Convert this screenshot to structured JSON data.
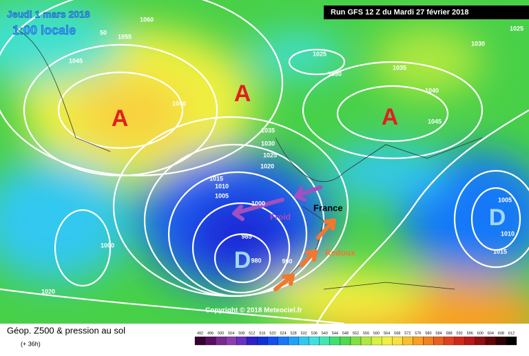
{
  "header": {
    "date": "Jeudi 1 mars 2018",
    "time": "1:00 locale",
    "run": "Run GFS 12 Z du Mardi 27 février 2018"
  },
  "isobars": [
    "1060",
    "50",
    "1055",
    "1045",
    "1040",
    "1025",
    "1030",
    "1035",
    "1040",
    "1045",
    "1030",
    "1025",
    "1035",
    "1030",
    "1025",
    "1020",
    "1015",
    "1010",
    "1005",
    "1000",
    "985",
    "980",
    "990",
    "1000",
    "1020",
    "1005",
    "1010",
    "1015"
  ],
  "centers": [
    "A",
    "A",
    "A",
    "D",
    "D"
  ],
  "annotations": {
    "cold": "Froid",
    "country": "France",
    "warm": "Redoux"
  },
  "copyright": "Copyright © 2018 Meteociel.fr",
  "footer": {
    "title": "Géop. Z500 & pression au sol",
    "lead": "(+ 36h)"
  },
  "legend": {
    "ticks": [
      492,
      496,
      500,
      504,
      508,
      512,
      516,
      520,
      524,
      528,
      532,
      536,
      540,
      544,
      548,
      552,
      556,
      560,
      564,
      568,
      572,
      576,
      580,
      584,
      588,
      592,
      596,
      600,
      604,
      608,
      612
    ],
    "colors": [
      "#3a0030",
      "#5a1060",
      "#7a2a90",
      "#8a40b0",
      "#6a30c0",
      "#3020c8",
      "#1030d8",
      "#1050f0",
      "#1878f8",
      "#20a0f8",
      "#30c8f0",
      "#40e0e0",
      "#40e8b0",
      "#40e070",
      "#50d850",
      "#80e040",
      "#b0e840",
      "#d8f040",
      "#f0f040",
      "#f8e040",
      "#f8c030",
      "#f8a020",
      "#f08020",
      "#e86020",
      "#e04020",
      "#d02818",
      "#b81818",
      "#901010",
      "#600808",
      "#300404",
      "#000000"
    ]
  }
}
